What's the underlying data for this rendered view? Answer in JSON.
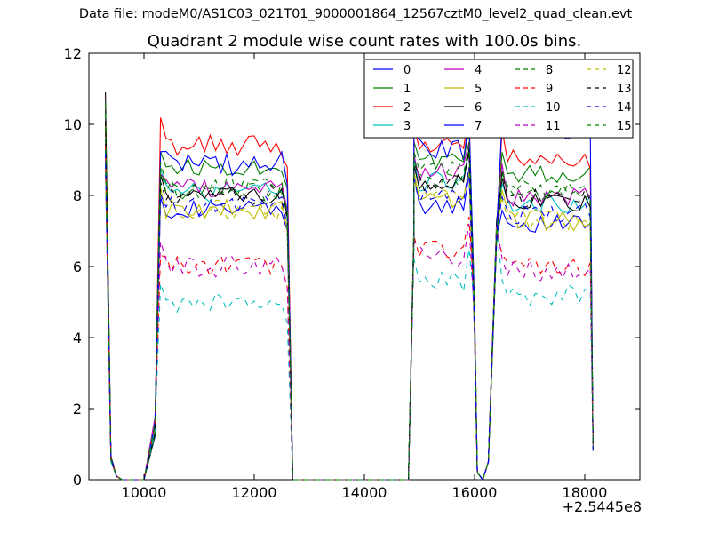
{
  "chart_data": {
    "type": "line",
    "suptitle": "Data file: modeM0/AS1C03_021T01_9000001864_12567cztM0_level2_quad_clean.evt",
    "title": "Quadrant 2 module wise count rates with 100.0s bins.",
    "xlabel": "",
    "ylabel": "",
    "x_offset_label": "+2.5445e8",
    "xlim": [
      9000,
      19000
    ],
    "ylim": [
      0,
      12
    ],
    "xticks": [
      10000,
      12000,
      14000,
      16000,
      18000
    ],
    "xtick_labels": [
      "10000",
      "12000",
      "14000",
      "16000",
      "18000"
    ],
    "yticks": [
      0,
      2,
      4,
      6,
      8,
      10,
      12
    ],
    "ytick_labels": [
      "0",
      "2",
      "4",
      "6",
      "8",
      "10",
      "12"
    ],
    "grid": false,
    "legend_position": "top-right",
    "legend_columns": 4,
    "series": [
      {
        "name": "0",
        "color": "#0000ff",
        "dash": "solid",
        "start": 8.8,
        "level": 7.5,
        "wiggle": 0.25,
        "segs": [
          7.6,
          7.7,
          7.2
        ]
      },
      {
        "name": "1",
        "color": "#008000",
        "dash": "solid",
        "start": 10.4,
        "level": 8.8,
        "wiggle": 0.25,
        "segs": [
          8.8,
          9.0,
          8.6
        ]
      },
      {
        "name": "2",
        "color": "#ff0000",
        "dash": "solid",
        "start": 10.0,
        "level": 9.3,
        "wiggle": 0.3,
        "segs": [
          9.4,
          9.4,
          9.0
        ]
      },
      {
        "name": "3",
        "color": "#00bfbf",
        "dash": "solid",
        "start": 9.3,
        "level": 8.0,
        "wiggle": 0.3,
        "segs": [
          8.1,
          8.4,
          7.8
        ]
      },
      {
        "name": "4",
        "color": "#bf00bf",
        "dash": "solid",
        "start": 9.0,
        "level": 8.2,
        "wiggle": 0.3,
        "segs": [
          8.2,
          8.6,
          8.0
        ]
      },
      {
        "name": "5",
        "color": "#bfbf00",
        "dash": "solid",
        "start": 8.9,
        "level": 7.6,
        "wiggle": 0.3,
        "segs": [
          7.6,
          7.8,
          7.3
        ]
      },
      {
        "name": "6",
        "color": "#000000",
        "dash": "solid",
        "start": 10.9,
        "level": 8.0,
        "wiggle": 0.25,
        "segs": [
          8.0,
          8.4,
          7.8
        ]
      },
      {
        "name": "7",
        "color": "#0000ff",
        "dash": "solid",
        "start": 9.6,
        "level": 8.7,
        "wiggle": 0.35,
        "segs": [
          8.9,
          9.3,
          9.8
        ]
      },
      {
        "name": "8",
        "color": "#008000",
        "dash": "dash",
        "start": 10.6,
        "level": 8.4,
        "wiggle": 0.3,
        "segs": [
          8.2,
          8.8,
          8.2
        ]
      },
      {
        "name": "9",
        "color": "#ff0000",
        "dash": "dash",
        "start": 9.4,
        "level": 6.1,
        "wiggle": 0.3,
        "segs": [
          6.0,
          6.5,
          6.0
        ]
      },
      {
        "name": "10",
        "color": "#00bfbf",
        "dash": "dash",
        "start": 8.9,
        "level": 5.0,
        "wiggle": 0.3,
        "segs": [
          5.0,
          5.6,
          5.2
        ]
      },
      {
        "name": "11",
        "color": "#bf00bf",
        "dash": "dash",
        "start": 9.5,
        "level": 6.0,
        "wiggle": 0.3,
        "segs": [
          6.0,
          6.3,
          5.9
        ]
      },
      {
        "name": "12",
        "color": "#bfbf00",
        "dash": "dash",
        "start": 9.8,
        "level": 7.6,
        "wiggle": 0.3,
        "segs": [
          7.6,
          7.9,
          7.3
        ]
      },
      {
        "name": "13",
        "color": "#000000",
        "dash": "dash",
        "start": 10.1,
        "level": 8.0,
        "wiggle": 0.3,
        "segs": [
          8.0,
          8.3,
          7.9
        ]
      },
      {
        "name": "14",
        "color": "#0000ff",
        "dash": "dash",
        "start": 9.2,
        "level": 7.7,
        "wiggle": 0.3,
        "segs": [
          7.7,
          7.9,
          7.5
        ]
      },
      {
        "name": "15",
        "color": "#008000",
        "dash": "dash",
        "start": 9.9,
        "level": 8.1,
        "wiggle": 0.3,
        "segs": [
          8.1,
          8.5,
          8.0
        ]
      }
    ],
    "time_bins": {
      "segment_1": {
        "x_start": 10300,
        "x_end": 12500,
        "step": 100
      },
      "segment_2": {
        "x_start": 14900,
        "x_end": 15900,
        "step": 100
      },
      "segment_3": {
        "x_start": 16500,
        "x_end": 18100,
        "step": 100
      }
    }
  }
}
